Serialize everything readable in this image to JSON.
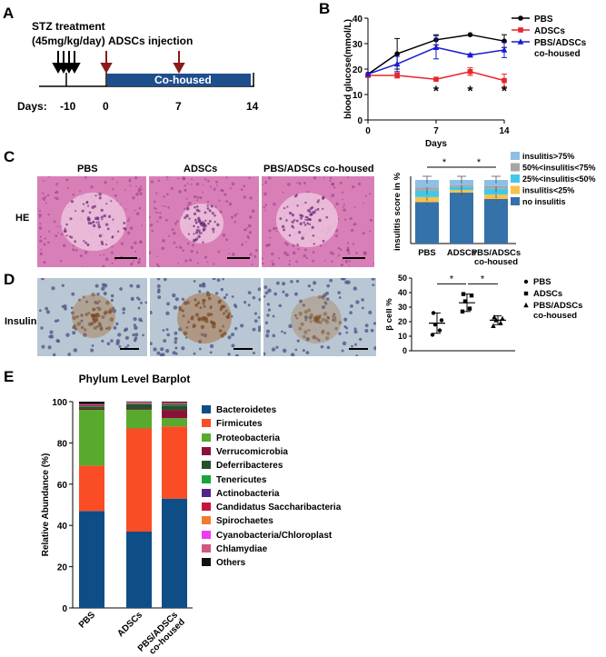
{
  "panels": {
    "a": "A",
    "b": "B",
    "c": "C",
    "d": "D",
    "e": "E"
  },
  "timeline": {
    "stz_title": "STZ treatment",
    "stz_dose": "(45mg/kg/day)",
    "injection": "ADSCs injection",
    "cohoused": "Co-housed",
    "days_label": "Days:",
    "days": [
      "-10",
      "0",
      "7",
      "14"
    ],
    "colors": {
      "bar": "#1f4e8c",
      "injection_arrow": "#8b1a1a"
    }
  },
  "chart_data": [
    {
      "id": "blood-glucose",
      "type": "line",
      "xlabel": "Days",
      "ylabel": "blood glucose(mmol/L)",
      "xlim": [
        0,
        14
      ],
      "ylim": [
        0,
        40
      ],
      "xticks": [
        0,
        7,
        14
      ],
      "yticks": [
        0,
        10,
        20,
        30,
        40
      ],
      "legend_position": "top-right",
      "series": [
        {
          "name": "PBS",
          "color": "#000000",
          "marker": "circle",
          "x": [
            0,
            3,
            7,
            10.5,
            14
          ],
          "y": [
            18,
            26,
            31.5,
            33.5,
            31
          ],
          "err": [
            0,
            6,
            2,
            0,
            2.5
          ]
        },
        {
          "name": "ADSCs",
          "color": "#e8262c",
          "marker": "square",
          "x": [
            0,
            3,
            7,
            10.5,
            14
          ],
          "y": [
            17.5,
            17.5,
            16,
            19,
            15.5
          ],
          "err": [
            0,
            1,
            0,
            1.5,
            2.5
          ]
        },
        {
          "name": "PBS/ADSCs co-housed",
          "color": "#1a1ad6",
          "marker": "triangle",
          "x": [
            0,
            3,
            7,
            10.5,
            14
          ],
          "y": [
            18,
            22,
            28.5,
            25.5,
            27.5
          ],
          "err": [
            0,
            3,
            4.5,
            0.5,
            3
          ]
        }
      ],
      "annotations": [
        {
          "x": 7,
          "text": "*"
        },
        {
          "x": 10.5,
          "text": "*"
        },
        {
          "x": 14,
          "text": "*"
        }
      ]
    },
    {
      "id": "insulitis-score",
      "type": "bar",
      "stacked": true,
      "ylabel": "insulitis score in %",
      "categories": [
        "PBS",
        "ADSCs",
        "PBS/ADSCs co-housed"
      ],
      "ylim": [
        0,
        100
      ],
      "series": [
        {
          "name": "no insulitis",
          "color": "#3572aa",
          "values": [
            65,
            80,
            70
          ]
        },
        {
          "name": "insulitis<25%",
          "color": "#f7c24a",
          "values": [
            8,
            4,
            7
          ]
        },
        {
          "name": "25%<insulitis<50%",
          "color": "#41c7ea",
          "values": [
            10,
            5,
            9
          ]
        },
        {
          "name": "50%<insulitis<75%",
          "color": "#a6a6a6",
          "values": [
            5,
            3,
            4
          ]
        },
        {
          "name": "insulitis>75%",
          "color": "#8fbfe6",
          "values": [
            12,
            8,
            10
          ]
        }
      ],
      "significance": [
        "*",
        "*"
      ]
    },
    {
      "id": "beta-cell",
      "type": "scatter",
      "ylabel": "β cell %",
      "ylim": [
        0,
        50
      ],
      "yticks": [
        0,
        10,
        20,
        30,
        40,
        50
      ],
      "groups": [
        {
          "name": "PBS",
          "marker": "circle",
          "values": [
            11,
            14,
            18,
            21,
            26
          ],
          "mean": 19,
          "sd": 7
        },
        {
          "name": "ADSCs",
          "marker": "square",
          "values": [
            27,
            29,
            34,
            38,
            39
          ],
          "mean": 33,
          "sd": 6
        },
        {
          "name": "PBS/ADSCs co-housed",
          "marker": "triangle",
          "values": [
            17,
            19,
            21,
            22,
            23
          ],
          "mean": 21,
          "sd": 3
        }
      ],
      "significance": [
        "*",
        "*"
      ]
    },
    {
      "id": "phylum-barplot",
      "type": "bar",
      "stacked": true,
      "title": "Phylum   Level   Barplot",
      "ylabel": "Relative Abundance (%)",
      "ylim": [
        0,
        100
      ],
      "yticks": [
        0,
        20,
        40,
        60,
        80,
        100
      ],
      "categories": [
        "PBS",
        "ADSCs",
        "PBS/ADSCs co-housed"
      ],
      "series": [
        {
          "name": "Bacteroidetes",
          "color": "#0f4d86",
          "values": [
            47,
            37,
            53
          ]
        },
        {
          "name": "Firmicutes",
          "color": "#fb4d25",
          "values": [
            22,
            50,
            35
          ]
        },
        {
          "name": "Proteobacteria",
          "color": "#58a92d",
          "values": [
            27,
            9,
            4
          ]
        },
        {
          "name": "Verrucomicrobia",
          "color": "#8a1238",
          "values": [
            0.5,
            0.3,
            4
          ]
        },
        {
          "name": "Deferribacteres",
          "color": "#28502b",
          "values": [
            1,
            2.5,
            2
          ]
        },
        {
          "name": "Tenericutes",
          "color": "#17a43f",
          "values": [
            0.3,
            0.2,
            0.5
          ]
        },
        {
          "name": "Actinobacteria",
          "color": "#55248a",
          "values": [
            0.2,
            0.2,
            0.2
          ]
        },
        {
          "name": "Candidatus Saccharibacteria",
          "color": "#c4153c",
          "values": [
            0.5,
            0.3,
            0.5
          ]
        },
        {
          "name": "Spirochaetes",
          "color": "#f17c30",
          "values": [
            0.1,
            0.1,
            0.1
          ]
        },
        {
          "name": "Cyanobacteria/Chloroplast",
          "color": "#f03cf0",
          "values": [
            0.1,
            0.1,
            0.1
          ]
        },
        {
          "name": "Chlamydiae",
          "color": "#d0577d",
          "values": [
            0.1,
            0.1,
            0.1
          ]
        },
        {
          "name": "Others",
          "color": "#111111",
          "values": [
            1.2,
            0.3,
            0.5
          ]
        }
      ]
    }
  ],
  "histology": {
    "row_he": "HE",
    "row_insulin": "Insulin",
    "columns": [
      "PBS",
      "ADSCs",
      "PBS/ADSCs co-housed"
    ],
    "colors": {
      "he_bg": "#d97fb7",
      "he_islet": "#ecc3de",
      "he_nuclei": "#8e3b8a",
      "ihc_bg": "#b8c7d3",
      "ihc_stain": "#a46a33",
      "ihc_nuclei": "#4b4f86"
    }
  }
}
